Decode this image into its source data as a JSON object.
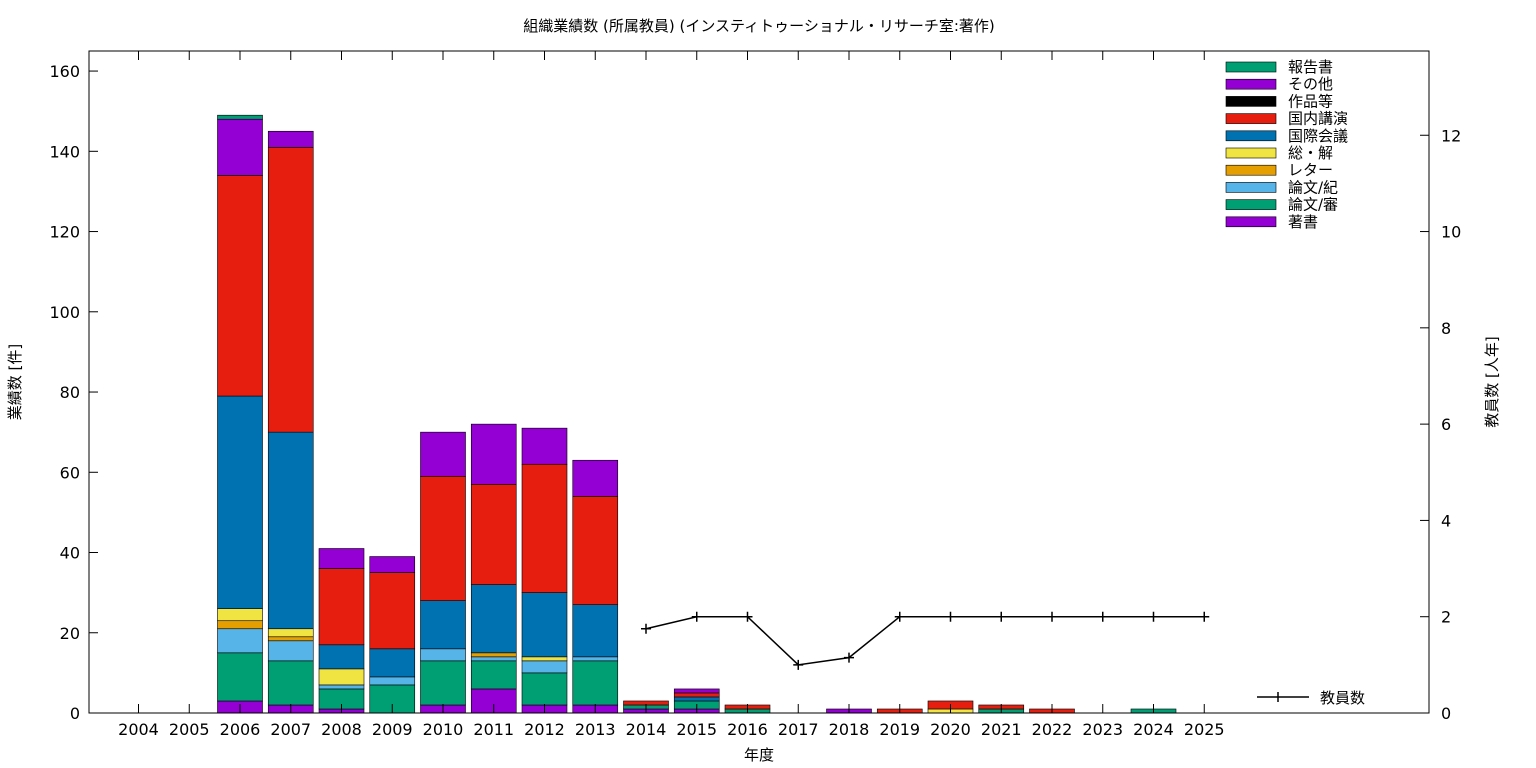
{
  "chart_data": {
    "type": "bar",
    "stacked": true,
    "title": "組織業績数 (所属教員) (インスティトゥーショナル・リサーチ室:著作)",
    "xlabel": "年度",
    "ylabel": "業績数 [件]",
    "y2label": "教員数 [人年]",
    "ylim": [
      0,
      165
    ],
    "y2lim": [
      0,
      13.75
    ],
    "yticks": [
      0,
      20,
      40,
      60,
      80,
      100,
      120,
      140,
      160
    ],
    "y2ticks": [
      0,
      2,
      4,
      6,
      8,
      10,
      12
    ],
    "grid": false,
    "legend_position": "top-right",
    "categories": [
      "2004",
      "2005",
      "2006",
      "2007",
      "2008",
      "2009",
      "2010",
      "2011",
      "2012",
      "2013",
      "2014",
      "2015",
      "2016",
      "2017",
      "2018",
      "2019",
      "2020",
      "2021",
      "2022",
      "2023",
      "2024",
      "2025"
    ],
    "series": [
      {
        "name": "著書",
        "color": "#9400d3",
        "values": [
          0,
          0,
          3,
          2,
          1,
          0,
          2,
          6,
          2,
          2,
          1,
          1,
          0,
          0,
          1,
          0,
          0,
          0,
          0,
          0,
          0,
          0
        ]
      },
      {
        "name": "論文/審",
        "color": "#009e73",
        "values": [
          0,
          0,
          12,
          11,
          5,
          7,
          11,
          7,
          8,
          11,
          1,
          2,
          1,
          0,
          0,
          0,
          0,
          1,
          0,
          0,
          1,
          0
        ]
      },
      {
        "name": "論文/紀",
        "color": "#56b4e9",
        "values": [
          0,
          0,
          6,
          5,
          1,
          2,
          3,
          1,
          3,
          1,
          0,
          0,
          0,
          0,
          0,
          0,
          0,
          0,
          0,
          0,
          0,
          0
        ]
      },
      {
        "name": "レター",
        "color": "#e69f00",
        "values": [
          0,
          0,
          2,
          1,
          0,
          0,
          0,
          1,
          0,
          0,
          0,
          0,
          0,
          0,
          0,
          0,
          0,
          0,
          0,
          0,
          0,
          0
        ]
      },
      {
        "name": "総・解",
        "color": "#f0e442",
        "values": [
          0,
          0,
          3,
          2,
          4,
          0,
          0,
          0,
          1,
          0,
          0,
          0,
          0,
          0,
          0,
          0,
          1,
          0,
          0,
          0,
          0,
          0
        ]
      },
      {
        "name": "国際会議",
        "color": "#0072b2",
        "values": [
          0,
          0,
          53,
          49,
          6,
          7,
          12,
          17,
          16,
          13,
          0,
          1,
          0,
          0,
          0,
          0,
          0,
          0,
          0,
          0,
          0,
          0
        ]
      },
      {
        "name": "国内講演",
        "color": "#e51e10",
        "values": [
          0,
          0,
          55,
          71,
          19,
          19,
          31,
          25,
          32,
          27,
          1,
          1,
          1,
          0,
          0,
          1,
          2,
          1,
          1,
          0,
          0,
          0
        ]
      },
      {
        "name": "作品等",
        "color": "#000000",
        "values": [
          0,
          0,
          0,
          0,
          0,
          0,
          0,
          0,
          0,
          0,
          0,
          0,
          0,
          0,
          0,
          0,
          0,
          0,
          0,
          0,
          0,
          0
        ]
      },
      {
        "name": "その他",
        "color": "#9400d3",
        "values": [
          0,
          0,
          14,
          4,
          5,
          4,
          11,
          15,
          9,
          9,
          0,
          1,
          0,
          0,
          0,
          0,
          0,
          0,
          0,
          0,
          0,
          0
        ]
      },
      {
        "name": "報告書",
        "color": "#009e73",
        "values": [
          0,
          0,
          1,
          0,
          0,
          0,
          0,
          0,
          0,
          0,
          0,
          0,
          0,
          0,
          0,
          0,
          0,
          0,
          0,
          0,
          0,
          0
        ]
      }
    ],
    "line_series": {
      "name": "教員数",
      "axis": "y2",
      "color": "#000000",
      "x": [
        "2014",
        "2015",
        "2016",
        "2017",
        "2018",
        "2019",
        "2020",
        "2021",
        "2022",
        "2023",
        "2024",
        "2025"
      ],
      "values": [
        1.75,
        2,
        2,
        1,
        1.15,
        2,
        2,
        2,
        2,
        2,
        2,
        2
      ]
    }
  }
}
